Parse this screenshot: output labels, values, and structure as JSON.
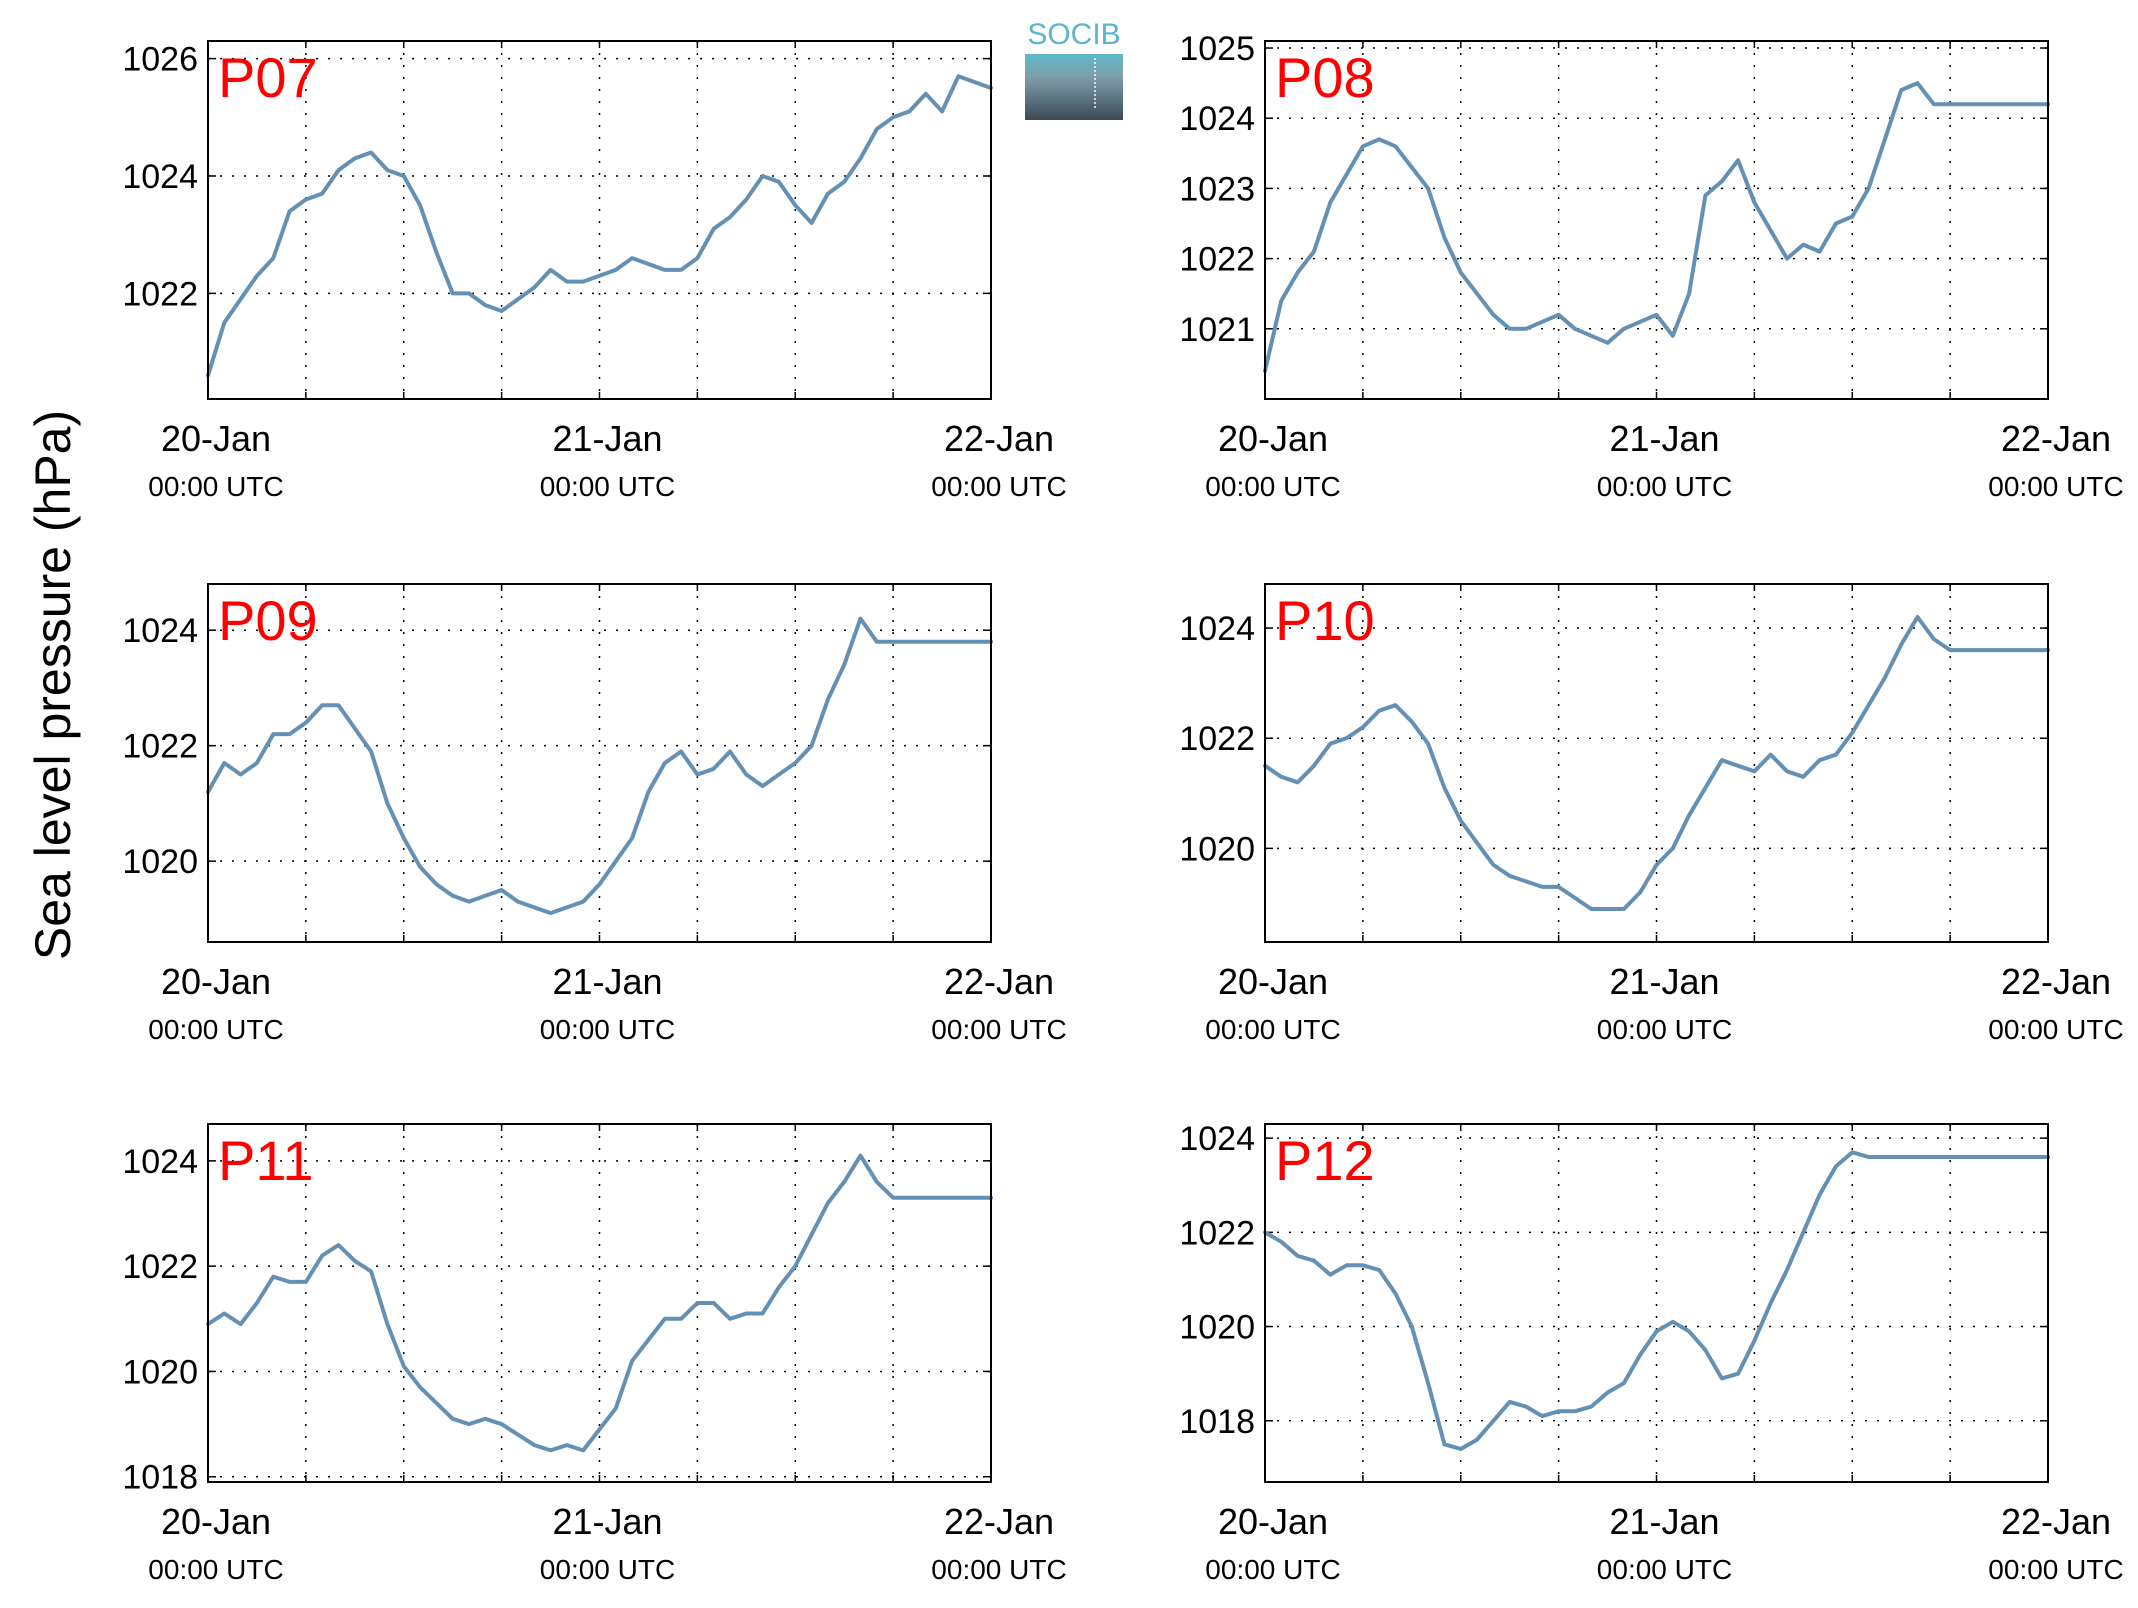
{
  "ylabel": "Sea level pressure (hPa)",
  "logo_text": "SOCIB",
  "x_tick_dates": [
    "20-Jan",
    "21-Jan",
    "22-Jan"
  ],
  "x_tick_times": [
    "00:00 UTC",
    "00:00 UTC",
    "00:00 UTC"
  ],
  "colors": {
    "line": "#6490b4",
    "panel_label": "#ff0000",
    "axis": "#000000"
  },
  "chart_data": [
    {
      "type": "line",
      "panel_label": "P07",
      "xlim": [
        "20-Jan 00:00",
        "22-Jan 00:00"
      ],
      "ylim": [
        1020.2,
        1026.3
      ],
      "yticks": [
        1022,
        1024,
        1026
      ],
      "grid": true,
      "x": [
        0,
        1,
        2,
        3,
        4,
        5,
        6,
        7,
        8,
        9,
        10,
        11,
        12,
        13,
        14,
        15,
        16,
        17,
        18,
        19,
        20,
        21,
        22,
        23,
        24,
        25,
        26,
        27,
        28,
        29,
        30,
        31,
        32,
        33,
        34,
        35,
        36,
        37,
        38,
        39,
        40,
        41,
        42,
        43,
        44,
        45,
        46,
        47,
        48
      ],
      "y": [
        1020.6,
        1021.5,
        1021.9,
        1022.3,
        1022.6,
        1023.4,
        1023.6,
        1023.7,
        1024.1,
        1024.3,
        1024.4,
        1024.1,
        1024.0,
        1023.5,
        1022.7,
        1022.0,
        1022.0,
        1021.8,
        1021.7,
        1021.9,
        1022.1,
        1022.4,
        1022.2,
        1022.2,
        1022.3,
        1022.4,
        1022.6,
        1022.5,
        1022.4,
        1022.4,
        1022.6,
        1023.1,
        1023.3,
        1023.6,
        1024.0,
        1023.9,
        1023.5,
        1023.2,
        1023.7,
        1023.9,
        1024.3,
        1024.8,
        1025.0,
        1025.1,
        1025.4,
        1025.1,
        1025.7,
        1025.6,
        1025.5
      ],
      "series_color": "#6490b4"
    },
    {
      "type": "line",
      "panel_label": "P08",
      "xlim": [
        "20-Jan 00:00",
        "22-Jan 00:00"
      ],
      "ylim": [
        1020.0,
        1025.1
      ],
      "yticks": [
        1021,
        1022,
        1023,
        1024,
        1025
      ],
      "grid": true,
      "x": [
        0,
        1,
        2,
        3,
        4,
        5,
        6,
        7,
        8,
        9,
        10,
        11,
        12,
        13,
        14,
        15,
        16,
        17,
        18,
        19,
        20,
        21,
        22,
        23,
        24,
        25,
        26,
        27,
        28,
        29,
        30,
        31,
        32,
        33,
        34,
        35,
        36,
        37,
        38,
        39,
        40,
        41,
        42,
        43,
        44,
        45,
        46,
        47,
        48
      ],
      "y": [
        1020.4,
        1021.4,
        1021.8,
        1022.1,
        1022.8,
        1023.2,
        1023.6,
        1023.7,
        1023.6,
        1023.3,
        1023.0,
        1022.3,
        1021.8,
        1021.5,
        1021.2,
        1021.0,
        1021.0,
        1021.1,
        1021.2,
        1021.0,
        1020.9,
        1020.8,
        1021.0,
        1021.1,
        1021.2,
        1020.9,
        1021.5,
        1022.9,
        1023.1,
        1023.4,
        1022.8,
        1022.4,
        1022.0,
        1022.2,
        1022.1,
        1022.5,
        1022.6,
        1023.0,
        1023.7,
        1024.4,
        1024.5,
        1024.2,
        1024.2,
        1024.2,
        1024.2,
        1024.2,
        1024.2,
        1024.2,
        1024.2
      ],
      "series_color": "#6490b4"
    },
    {
      "type": "line",
      "panel_label": "P09",
      "xlim": [
        "20-Jan 00:00",
        "22-Jan 00:00"
      ],
      "ylim": [
        1018.6,
        1024.8
      ],
      "yticks": [
        1020,
        1022,
        1024
      ],
      "grid": true,
      "x": [
        0,
        1,
        2,
        3,
        4,
        5,
        6,
        7,
        8,
        9,
        10,
        11,
        12,
        13,
        14,
        15,
        16,
        17,
        18,
        19,
        20,
        21,
        22,
        23,
        24,
        25,
        26,
        27,
        28,
        29,
        30,
        31,
        32,
        33,
        34,
        35,
        36,
        37,
        38,
        39,
        40,
        41,
        42,
        43,
        44,
        45,
        46,
        47,
        48
      ],
      "y": [
        1021.2,
        1021.7,
        1021.5,
        1021.7,
        1022.2,
        1022.2,
        1022.4,
        1022.7,
        1022.7,
        1022.3,
        1021.9,
        1021.0,
        1020.4,
        1019.9,
        1019.6,
        1019.4,
        1019.3,
        1019.4,
        1019.5,
        1019.3,
        1019.2,
        1019.1,
        1019.2,
        1019.3,
        1019.6,
        1020.0,
        1020.4,
        1021.2,
        1021.7,
        1021.9,
        1021.5,
        1021.6,
        1021.9,
        1021.5,
        1021.3,
        1021.5,
        1021.7,
        1022.0,
        1022.8,
        1023.4,
        1024.2,
        1023.8,
        1023.8,
        1023.8,
        1023.8,
        1023.8,
        1023.8,
        1023.8,
        1023.8
      ],
      "series_color": "#6490b4"
    },
    {
      "type": "line",
      "panel_label": "P10",
      "xlim": [
        "20-Jan 00:00",
        "22-Jan 00:00"
      ],
      "ylim": [
        1018.3,
        1024.8
      ],
      "yticks": [
        1020,
        1022,
        1024
      ],
      "grid": true,
      "x": [
        0,
        1,
        2,
        3,
        4,
        5,
        6,
        7,
        8,
        9,
        10,
        11,
        12,
        13,
        14,
        15,
        16,
        17,
        18,
        19,
        20,
        21,
        22,
        23,
        24,
        25,
        26,
        27,
        28,
        29,
        30,
        31,
        32,
        33,
        34,
        35,
        36,
        37,
        38,
        39,
        40,
        41,
        42,
        43,
        44,
        45,
        46,
        47,
        48
      ],
      "y": [
        1021.5,
        1021.3,
        1021.2,
        1021.5,
        1021.9,
        1022.0,
        1022.2,
        1022.5,
        1022.6,
        1022.3,
        1021.9,
        1021.1,
        1020.5,
        1020.1,
        1019.7,
        1019.5,
        1019.4,
        1019.3,
        1019.3,
        1019.1,
        1018.9,
        1018.9,
        1018.9,
        1019.2,
        1019.7,
        1020.0,
        1020.6,
        1021.1,
        1021.6,
        1021.5,
        1021.4,
        1021.7,
        1021.4,
        1021.3,
        1021.6,
        1021.7,
        1022.1,
        1022.6,
        1023.1,
        1023.7,
        1024.2,
        1023.8,
        1023.6,
        1023.6,
        1023.6,
        1023.6,
        1023.6,
        1023.6,
        1023.6
      ],
      "series_color": "#6490b4"
    },
    {
      "type": "line",
      "panel_label": "P11",
      "xlim": [
        "20-Jan 00:00",
        "22-Jan 00:00"
      ],
      "ylim": [
        1017.9,
        1024.7
      ],
      "yticks": [
        1018,
        1020,
        1022,
        1024
      ],
      "grid": true,
      "x": [
        0,
        1,
        2,
        3,
        4,
        5,
        6,
        7,
        8,
        9,
        10,
        11,
        12,
        13,
        14,
        15,
        16,
        17,
        18,
        19,
        20,
        21,
        22,
        23,
        24,
        25,
        26,
        27,
        28,
        29,
        30,
        31,
        32,
        33,
        34,
        35,
        36,
        37,
        38,
        39,
        40,
        41,
        42,
        43,
        44,
        45,
        46,
        47,
        48
      ],
      "y": [
        1020.9,
        1021.1,
        1020.9,
        1021.3,
        1021.8,
        1021.7,
        1021.7,
        1022.2,
        1022.4,
        1022.1,
        1021.9,
        1020.9,
        1020.1,
        1019.7,
        1019.4,
        1019.1,
        1019.0,
        1019.1,
        1019.0,
        1018.8,
        1018.6,
        1018.5,
        1018.6,
        1018.5,
        1018.9,
        1019.3,
        1020.2,
        1020.6,
        1021.0,
        1021.0,
        1021.3,
        1021.3,
        1021.0,
        1021.1,
        1021.1,
        1021.6,
        1022.0,
        1022.6,
        1023.2,
        1023.6,
        1024.1,
        1023.6,
        1023.3,
        1023.3,
        1023.3,
        1023.3,
        1023.3,
        1023.3,
        1023.3
      ],
      "series_color": "#6490b4"
    },
    {
      "type": "line",
      "panel_label": "P12",
      "xlim": [
        "20-Jan 00:00",
        "22-Jan 00:00"
      ],
      "ylim": [
        1016.7,
        1024.3
      ],
      "yticks": [
        1018,
        1020,
        1022,
        1024
      ],
      "grid": true,
      "x": [
        0,
        1,
        2,
        3,
        4,
        5,
        6,
        7,
        8,
        9,
        10,
        11,
        12,
        13,
        14,
        15,
        16,
        17,
        18,
        19,
        20,
        21,
        22,
        23,
        24,
        25,
        26,
        27,
        28,
        29,
        30,
        31,
        32,
        33,
        34,
        35,
        36,
        37,
        38,
        39,
        40,
        41,
        42,
        43,
        44,
        45,
        46,
        47,
        48
      ],
      "y": [
        1022.0,
        1021.8,
        1021.5,
        1021.4,
        1021.1,
        1021.3,
        1021.3,
        1021.2,
        1020.7,
        1020.0,
        1018.8,
        1017.5,
        1017.4,
        1017.6,
        1018.0,
        1018.4,
        1018.3,
        1018.1,
        1018.2,
        1018.2,
        1018.3,
        1018.6,
        1018.8,
        1019.4,
        1019.9,
        1020.1,
        1019.9,
        1019.5,
        1018.9,
        1019.0,
        1019.7,
        1020.5,
        1021.2,
        1022.0,
        1022.8,
        1023.4,
        1023.7,
        1023.6,
        1023.6,
        1023.6,
        1023.6,
        1023.6,
        1023.6,
        1023.6,
        1023.6,
        1023.6,
        1023.6,
        1023.6,
        1023.6
      ],
      "series_color": "#6490b4"
    }
  ]
}
